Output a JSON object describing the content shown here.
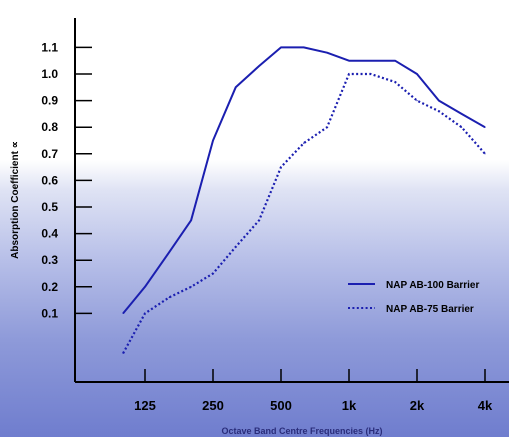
{
  "chart_data": {
    "type": "line",
    "xlabel": "Octave Band Centre Frequencies (Hz)",
    "ylabel": "Absorption Coefficient ∝",
    "x_ticks": [
      "125",
      "250",
      "500",
      "1k",
      "2k",
      "4k"
    ],
    "y_ticks": [
      "0.1",
      "0.2",
      "0.3",
      "0.4",
      "0.5",
      "0.6",
      "0.7",
      "0.8",
      "0.9",
      "1.0",
      "1.1"
    ],
    "x_scale": "log-octave",
    "xlim": [
      "100",
      "5k"
    ],
    "ylim": [
      -0.2,
      1.2
    ],
    "legend_position": "right",
    "series": [
      {
        "name": "NAP AB-100 Barrier",
        "style": "solid",
        "color": "#1b1fb0",
        "x": [
          "100",
          "125",
          "160",
          "200",
          "250",
          "315",
          "400",
          "500",
          "630",
          "800",
          "1k",
          "1.25k",
          "1.6k",
          "2k",
          "2.5k",
          "3.15k",
          "4k"
        ],
        "values": [
          0.1,
          0.2,
          0.33,
          0.45,
          0.75,
          0.95,
          1.03,
          1.1,
          1.1,
          1.08,
          1.05,
          1.05,
          1.05,
          1.0,
          0.9,
          0.85,
          0.8
        ]
      },
      {
        "name": "NAP AB-75 Barrier",
        "style": "dotted",
        "color": "#1b1fb0",
        "x": [
          "100",
          "125",
          "160",
          "200",
          "250",
          "315",
          "400",
          "500",
          "630",
          "800",
          "1k",
          "1.25k",
          "1.6k",
          "2k",
          "2.5k",
          "3.15k",
          "4k"
        ],
        "values": [
          -0.05,
          0.1,
          0.16,
          0.2,
          0.25,
          0.35,
          0.45,
          0.65,
          0.74,
          0.8,
          1.0,
          1.0,
          0.97,
          0.9,
          0.86,
          0.8,
          0.7
        ]
      }
    ]
  }
}
